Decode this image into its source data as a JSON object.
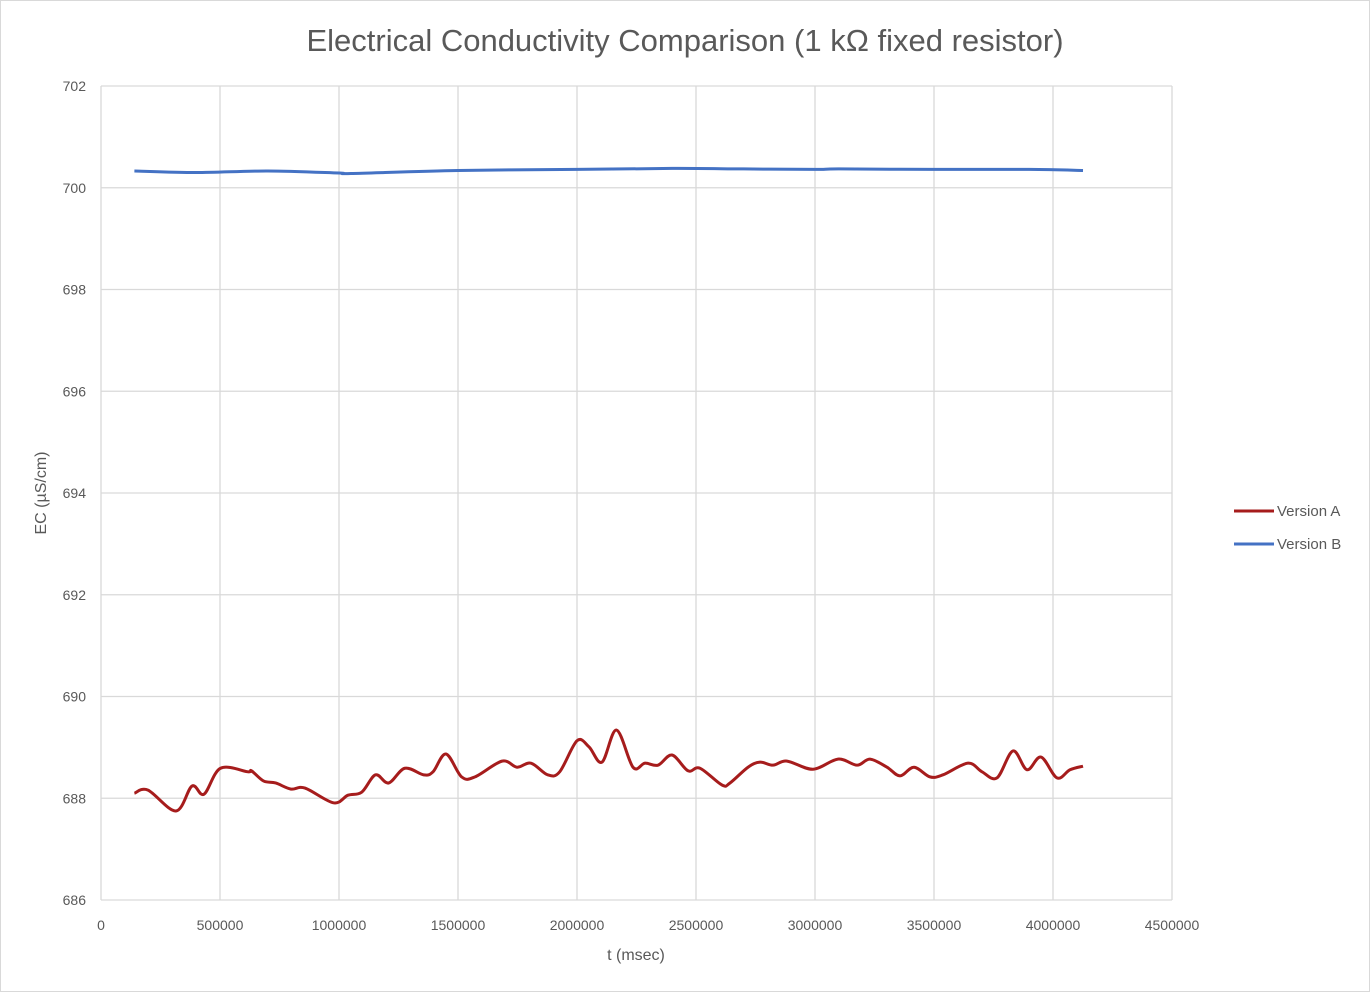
{
  "chart_data": {
    "type": "line",
    "title": "Electrical Conductivity Comparison (1 kΩ fixed resistor)",
    "xlabel": "t (msec)",
    "ylabel": "EC (µS/cm)",
    "xlim": [
      0,
      4500000
    ],
    "ylim": [
      686,
      702
    ],
    "xticks": [
      0,
      500000,
      1000000,
      1500000,
      2000000,
      2500000,
      3000000,
      3500000,
      4000000,
      4500000
    ],
    "yticks": [
      686,
      688,
      690,
      692,
      694,
      696,
      698,
      700,
      702
    ],
    "grid": true,
    "legend": "right",
    "series": [
      {
        "name": "Version A",
        "color": "#a61c1c",
        "x": [
          140300,
          197500,
          315100,
          382400,
          432800,
          502100,
          617600,
          632400,
          682800,
          733600,
          798300,
          857100,
          976900,
          1037800,
          1095400,
          1153400,
          1208400,
          1276500,
          1355900,
          1395000,
          1449600,
          1515100,
          1571400,
          1684900,
          1747900,
          1806700,
          1876900,
          1927300,
          2000000,
          2050400,
          2105000,
          2166000,
          2235300,
          2285700,
          2340300,
          2399200,
          2466400,
          2516800,
          2609200,
          2642900,
          2718500,
          2768900,
          2823500,
          2882400,
          2991600,
          3096600,
          3176500,
          3231100,
          3302500,
          3357200,
          3416000,
          3483200,
          3537800,
          3642900,
          3701700,
          3764700,
          3831900,
          3890800,
          3949600,
          4016800,
          4071400,
          4126100
        ],
        "y": [
          688.1,
          688.16,
          687.75,
          688.24,
          688.08,
          688.59,
          688.52,
          688.54,
          688.34,
          688.3,
          688.18,
          688.2,
          687.91,
          688.06,
          688.12,
          688.46,
          688.3,
          688.59,
          688.46,
          688.52,
          688.87,
          688.42,
          688.42,
          688.73,
          688.61,
          688.69,
          688.46,
          688.52,
          689.13,
          689.01,
          688.71,
          689.34,
          688.61,
          688.69,
          688.65,
          688.85,
          688.54,
          688.59,
          688.26,
          688.3,
          688.61,
          688.71,
          688.65,
          688.73,
          688.57,
          688.77,
          688.65,
          688.77,
          688.61,
          688.44,
          688.61,
          688.42,
          688.46,
          688.69,
          688.52,
          688.4,
          688.93,
          688.56,
          688.81,
          688.4,
          688.56,
          688.63
        ]
      },
      {
        "name": "Version B",
        "color": "#4472c4",
        "x": [
          140300,
          400000,
          700000,
          1000000,
          1050000,
          1500000,
          2000000,
          2400000,
          2700000,
          3000000,
          3100000,
          3500000,
          3900000,
          4126100
        ],
        "y": [
          700.33,
          700.3,
          700.33,
          700.29,
          700.28,
          700.34,
          700.36,
          700.38,
          700.37,
          700.36,
          700.37,
          700.36,
          700.36,
          700.34
        ]
      }
    ]
  }
}
